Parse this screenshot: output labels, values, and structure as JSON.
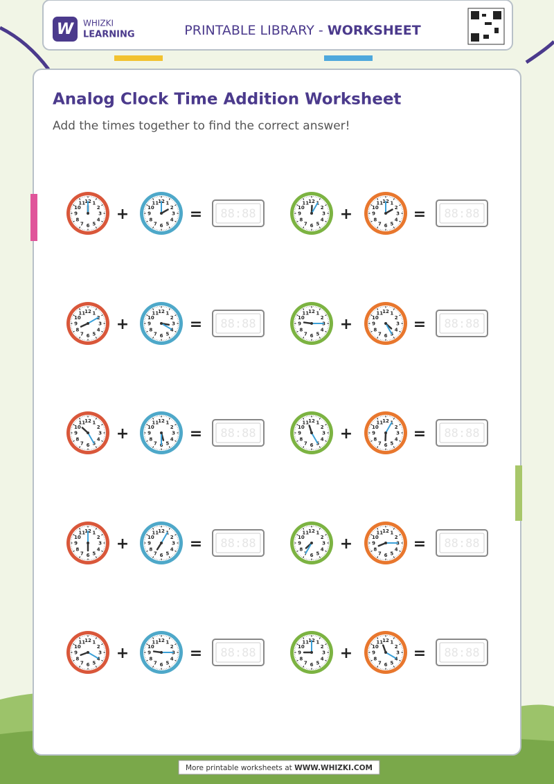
{
  "header": {
    "logo_letter": "W",
    "brand_top": "WHIZKI",
    "brand_bottom": "LEARNING",
    "library": "PRINTABLE LIBRARY - ",
    "library_bold": "WORKSHEET"
  },
  "title": "Analog Clock Time Addition Worksheet",
  "subtitle": "Add the times together to find the correct answer!",
  "clock_numbers": [
    "12",
    "1",
    "2",
    "3",
    "4",
    "5",
    "6",
    "7",
    "8",
    "9",
    "10",
    "11"
  ],
  "plus": "+",
  "equals": "=",
  "answer_placeholder": "88:88",
  "problems": [
    {
      "clocks": [
        {
          "hour": 12,
          "minute": 0
        },
        {
          "hour": 2,
          "minute": 0
        }
      ]
    },
    {
      "clocks": [
        {
          "hour": 12,
          "minute": 5
        },
        {
          "hour": 2,
          "minute": 0
        }
      ]
    },
    {
      "clocks": [
        {
          "hour": 8,
          "minute": 10
        },
        {
          "hour": 3,
          "minute": 20
        }
      ]
    },
    {
      "clocks": [
        {
          "hour": 9,
          "minute": 15
        },
        {
          "hour": 4,
          "minute": 25
        }
      ]
    },
    {
      "clocks": [
        {
          "hour": 10,
          "minute": 25
        },
        {
          "hour": 5,
          "minute": 30
        }
      ]
    },
    {
      "clocks": [
        {
          "hour": 11,
          "minute": 25
        },
        {
          "hour": 6,
          "minute": 5
        }
      ]
    },
    {
      "clocks": [
        {
          "hour": 6,
          "minute": 0
        },
        {
          "hour": 7,
          "minute": 5
        }
      ]
    },
    {
      "clocks": [
        {
          "hour": 7,
          "minute": 35
        },
        {
          "hour": 8,
          "minute": 15
        }
      ]
    },
    {
      "clocks": [
        {
          "hour": 8,
          "minute": 20
        },
        {
          "hour": 9,
          "minute": 15
        }
      ]
    },
    {
      "clocks": [
        {
          "hour": 9,
          "minute": 0
        },
        {
          "hour": 11,
          "minute": 20
        }
      ]
    }
  ],
  "footer": {
    "text": "More printable worksheets at ",
    "link": "WWW.WHIZKI.COM"
  }
}
